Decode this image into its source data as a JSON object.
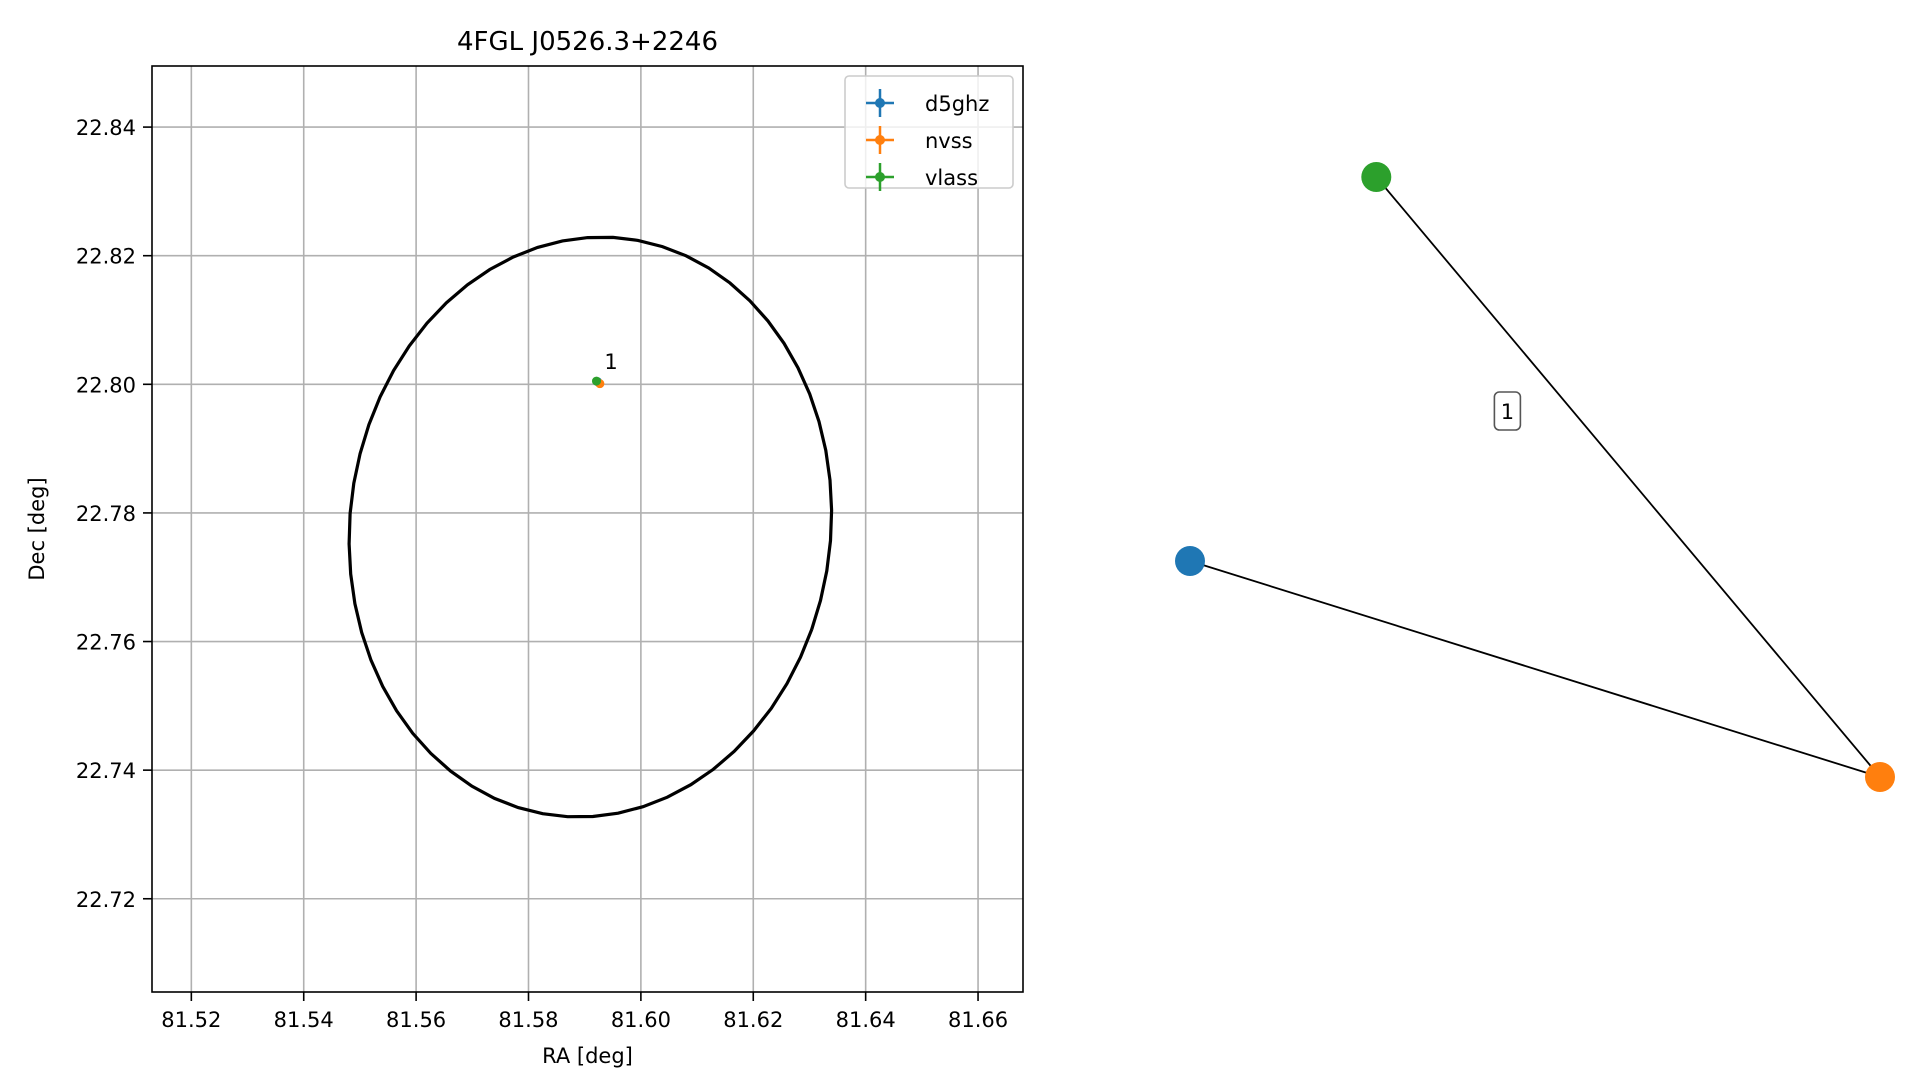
{
  "chart_data": [
    {
      "type": "scatter",
      "title": "4FGL J0526.3+2246",
      "xlabel": "RA [deg]",
      "ylabel": "Dec [deg]",
      "xlim": [
        81.513,
        81.668
      ],
      "ylim": [
        22.7055,
        22.8495
      ],
      "xticks": [
        81.52,
        81.54,
        81.56,
        81.58,
        81.6,
        81.62,
        81.64,
        81.66
      ],
      "xtick_labels": [
        "81.52",
        "81.54",
        "81.56",
        "81.58",
        "81.60",
        "81.62",
        "81.64",
        "81.66"
      ],
      "yticks": [
        22.72,
        22.74,
        22.76,
        22.78,
        22.8,
        22.82,
        22.84
      ],
      "ytick_labels": [
        "22.72",
        "22.74",
        "22.76",
        "22.78",
        "22.80",
        "22.82",
        "22.84"
      ],
      "grid": true,
      "legend_position": "top-right",
      "series": [
        {
          "name": "d5ghz",
          "color": "#1f77b4",
          "marker": "errorbar-point",
          "x": [
            81.5923
          ],
          "y": [
            22.8004
          ]
        },
        {
          "name": "nvss",
          "color": "#ff7f0e",
          "marker": "errorbar-point",
          "x": [
            81.5927
          ],
          "y": [
            22.8001
          ]
        },
        {
          "name": "vlass",
          "color": "#2ca02c",
          "marker": "errorbar-point",
          "x": [
            81.5921
          ],
          "y": [
            22.8005
          ]
        }
      ],
      "annotations": [
        {
          "text": "1",
          "x": 81.5935,
          "y": 22.8024
        }
      ],
      "ellipse": {
        "center": [
          81.591,
          22.7778
        ],
        "ra_semi_axis": 0.0425,
        "dec_semi_axis": 0.0455,
        "angle_deg": -22
      }
    },
    {
      "type": "network",
      "nodes": [
        {
          "id": "d5ghz",
          "color": "#1f77b4",
          "x": 0.0,
          "y": 0.36
        },
        {
          "id": "nvss",
          "color": "#ff7f0e",
          "x": 1.0,
          "y": 0.0
        },
        {
          "id": "vlass",
          "color": "#2ca02c",
          "x": 0.27,
          "y": 1.0
        }
      ],
      "edges": [
        [
          "d5ghz",
          "nvss"
        ],
        [
          "vlass",
          "nvss"
        ]
      ],
      "group_labels": [
        {
          "text": "1",
          "x": 0.46,
          "y": 0.61
        }
      ]
    }
  ]
}
